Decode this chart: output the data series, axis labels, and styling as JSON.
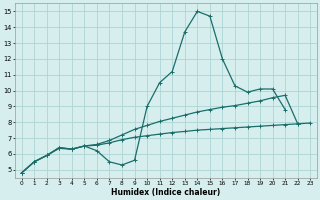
{
  "title": "",
  "xlabel": "Humidex (Indice chaleur)",
  "xlim": [
    -0.5,
    23.5
  ],
  "ylim": [
    4.5,
    15.5
  ],
  "xticks": [
    0,
    1,
    2,
    3,
    4,
    5,
    6,
    7,
    8,
    9,
    10,
    11,
    12,
    13,
    14,
    15,
    16,
    17,
    18,
    19,
    20,
    21,
    22,
    23
  ],
  "yticks": [
    5,
    6,
    7,
    8,
    9,
    10,
    11,
    12,
    13,
    14,
    15
  ],
  "bg_color": "#d6eeee",
  "grid_color": "#aed4d4",
  "line_color": "#1a6e6a",
  "line1_x": [
    0,
    1,
    2,
    3,
    4,
    5,
    6,
    7,
    8,
    9,
    10,
    11,
    12,
    13,
    14,
    15,
    16,
    17,
    18,
    19,
    20,
    21
  ],
  "line1_y": [
    4.8,
    5.5,
    5.9,
    6.4,
    6.3,
    6.5,
    6.2,
    5.5,
    5.3,
    5.6,
    9.0,
    10.5,
    11.2,
    13.7,
    15.0,
    14.7,
    12.0,
    10.3,
    9.9,
    10.1,
    10.1,
    8.8
  ],
  "line2_x": [
    0,
    1,
    2,
    3,
    4,
    5,
    6,
    7,
    8,
    9,
    10,
    11,
    12,
    13,
    14,
    15,
    16,
    17,
    18,
    19,
    20,
    21,
    22
  ],
  "line2_y": [
    4.8,
    5.5,
    5.9,
    6.4,
    6.3,
    6.5,
    6.6,
    6.85,
    7.2,
    7.55,
    7.8,
    8.05,
    8.25,
    8.45,
    8.65,
    8.8,
    8.95,
    9.05,
    9.2,
    9.35,
    9.55,
    9.7,
    7.9
  ],
  "line3_x": [
    0,
    1,
    2,
    3,
    4,
    5,
    6,
    7,
    8,
    9,
    10,
    11,
    12,
    13,
    14,
    15,
    16,
    17,
    18,
    19,
    20,
    21,
    22,
    23
  ],
  "line3_y": [
    4.8,
    5.5,
    5.9,
    6.35,
    6.3,
    6.5,
    6.55,
    6.7,
    6.9,
    7.05,
    7.15,
    7.25,
    7.35,
    7.42,
    7.5,
    7.55,
    7.6,
    7.65,
    7.7,
    7.75,
    7.8,
    7.85,
    7.9,
    7.95
  ]
}
